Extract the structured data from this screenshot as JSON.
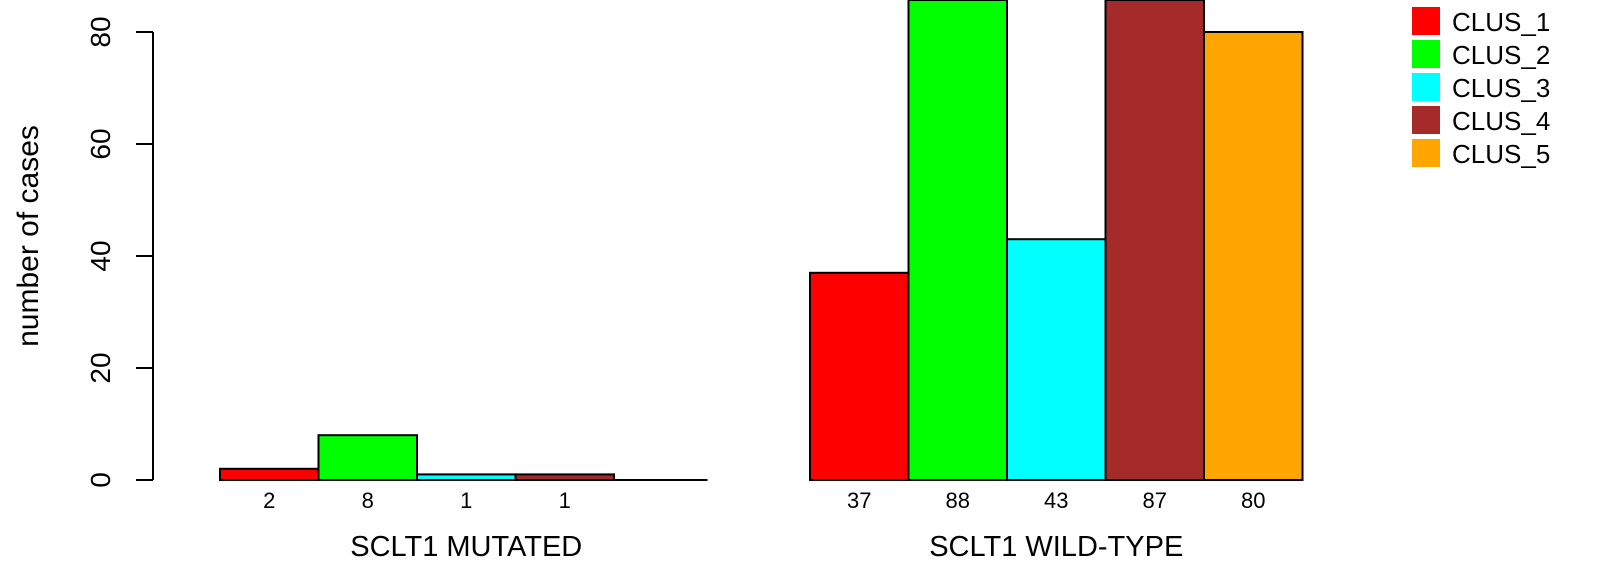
{
  "chart_data": {
    "type": "bar",
    "ylabel": "number of cases",
    "ylim": [
      0,
      80
    ],
    "yticks": [
      0,
      20,
      40,
      60,
      80
    ],
    "groups": [
      {
        "name": "SCLT1 MUTATED",
        "values": [
          2,
          8,
          1,
          1,
          0
        ],
        "value_labels": [
          "2",
          "8",
          "1",
          "1",
          ""
        ]
      },
      {
        "name": "SCLT1 WILD-TYPE",
        "values": [
          37,
          88,
          43,
          87,
          80
        ],
        "value_labels": [
          "37",
          "88",
          "43",
          "87",
          "80"
        ]
      }
    ],
    "series": [
      {
        "name": "CLUS_1",
        "color": "#ff0000"
      },
      {
        "name": "CLUS_2",
        "color": "#00ff00"
      },
      {
        "name": "CLUS_3",
        "color": "#00ffff"
      },
      {
        "name": "CLUS_4",
        "color": "#a52a2a"
      },
      {
        "name": "CLUS_5",
        "color": "#ffa500"
      }
    ],
    "legend_position": "top-right",
    "grid": false
  }
}
